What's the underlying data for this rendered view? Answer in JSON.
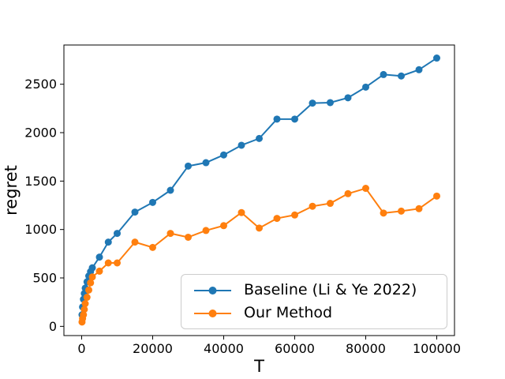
{
  "figure": {
    "background": "#ffffff",
    "text_color": "#000000"
  },
  "chart_data": {
    "type": "line",
    "title": "",
    "xlabel": "T",
    "ylabel": "regret",
    "xlim": [
      -5000,
      105000
    ],
    "ylim": [
      -95,
      2905
    ],
    "xticks": [
      0,
      20000,
      40000,
      60000,
      80000,
      100000
    ],
    "yticks": [
      0,
      500,
      1000,
      1500,
      2000,
      2500
    ],
    "grid": false,
    "legend_position": "lower right inside",
    "x": [
      100,
      250,
      500,
      750,
      1000,
      1500,
      2000,
      2500,
      3000,
      5000,
      7500,
      10000,
      15000,
      20000,
      25000,
      30000,
      35000,
      40000,
      45000,
      50000,
      55000,
      60000,
      65000,
      70000,
      75000,
      80000,
      85000,
      90000,
      95000,
      100000
    ],
    "series": [
      {
        "name": "Baseline (Li & Ye 2022)",
        "color": "#1f77b4",
        "marker": "circle",
        "values": [
          120,
          200,
          280,
          340,
          395,
          460,
          520,
          565,
          605,
          715,
          870,
          960,
          1180,
          1280,
          1405,
          1655,
          1690,
          1770,
          1870,
          1940,
          2140,
          2140,
          2305,
          2310,
          2360,
          2470,
          2600,
          2585,
          2650,
          2770
        ]
      },
      {
        "name": "Our Method",
        "color": "#ff7f0e",
        "marker": "circle",
        "values": [
          45,
          80,
          120,
          175,
          235,
          300,
          375,
          450,
          510,
          570,
          655,
          655,
          870,
          815,
          960,
          920,
          990,
          1040,
          1175,
          1015,
          1115,
          1150,
          1240,
          1270,
          1370,
          1425,
          1170,
          1190,
          1215,
          1345
        ]
      }
    ]
  }
}
